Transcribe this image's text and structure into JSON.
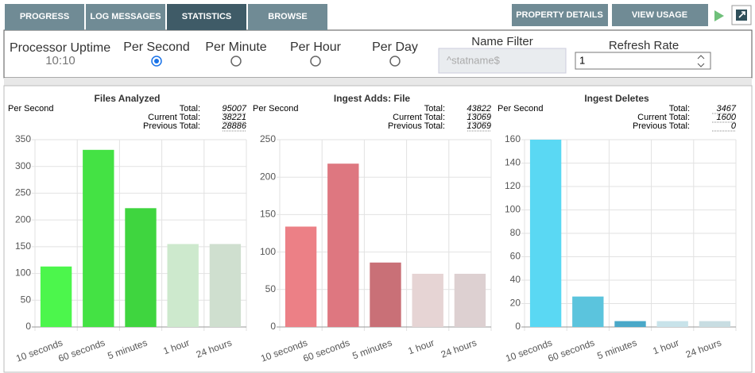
{
  "tabs": [
    {
      "label": "PROGRESS",
      "active": false
    },
    {
      "label": "LOG MESSAGES",
      "active": false
    },
    {
      "label": "STATISTICS",
      "active": true
    },
    {
      "label": "BROWSE",
      "active": false
    }
  ],
  "buttons": [
    "PROPERTY DETAILS",
    "VIEW USAGE"
  ],
  "uptime": {
    "label": "Processor Uptime",
    "value": "10:10"
  },
  "rates": [
    {
      "label": "Per Second",
      "selected": true
    },
    {
      "label": "Per Minute",
      "selected": false
    },
    {
      "label": "Per Hour",
      "selected": false
    },
    {
      "label": "Per Day",
      "selected": false
    }
  ],
  "name_filter": {
    "label": "Name Filter",
    "placeholder": "^statname$"
  },
  "refresh_rate": {
    "label": "Refresh Rate",
    "value": "1"
  },
  "chart_data": [
    {
      "type": "bar",
      "title": "Files Analyzed",
      "subtitle": "Per Second",
      "stats": [
        {
          "label": "Total:",
          "value": "95007"
        },
        {
          "label": "Current Total:",
          "value": "38221"
        },
        {
          "label": "Previous Total:",
          "value": "28886"
        }
      ],
      "categories": [
        "10 seconds",
        "60 seconds",
        "5 minutes",
        "1 hour",
        "24 hours"
      ],
      "values": [
        113,
        331,
        222,
        155,
        155
      ],
      "colors": [
        "#4cf64c",
        "#44e244",
        "#3fd53f",
        "#cde9cd",
        "#cfdfcf"
      ],
      "ylim": [
        0,
        350
      ],
      "yticks": [
        0,
        50,
        100,
        150,
        200,
        250,
        300,
        350
      ],
      "grid": true
    },
    {
      "type": "bar",
      "title": "Ingest Adds: File",
      "subtitle": "Per Second",
      "stats": [
        {
          "label": "Total:",
          "value": "43822"
        },
        {
          "label": "Current Total:",
          "value": "13069"
        },
        {
          "label": "Previous Total:",
          "value": "13069"
        }
      ],
      "categories": [
        "10 seconds",
        "60 seconds",
        "5 minutes",
        "1 hour",
        "24 hours"
      ],
      "values": [
        134,
        218,
        86,
        71,
        71
      ],
      "colors": [
        "#ec8086",
        "#de7780",
        "#c97077",
        "#e6d4d4",
        "#ddd0d1"
      ],
      "ylim": [
        0,
        250
      ],
      "yticks": [
        0,
        50,
        100,
        150,
        200,
        250
      ],
      "grid": true
    },
    {
      "type": "bar",
      "title": "Ingest Deletes",
      "subtitle": "Per Second",
      "stats": [
        {
          "label": "Total:",
          "value": "3467"
        },
        {
          "label": "Current Total:",
          "value": "1600"
        },
        {
          "label": "Previous Total:",
          "value": "0"
        }
      ],
      "categories": [
        "10 seconds",
        "60 seconds",
        "5 minutes",
        "1 hour",
        "24 hours"
      ],
      "values": [
        160,
        26,
        5,
        5,
        5
      ],
      "colors": [
        "#5ad8f3",
        "#5bc4dd",
        "#4aa8c8",
        "#c8e3ea",
        "#c8dde2"
      ],
      "ylim": [
        0,
        160
      ],
      "yticks": [
        0,
        20,
        40,
        60,
        80,
        100,
        120,
        140,
        160
      ],
      "grid": true
    }
  ]
}
